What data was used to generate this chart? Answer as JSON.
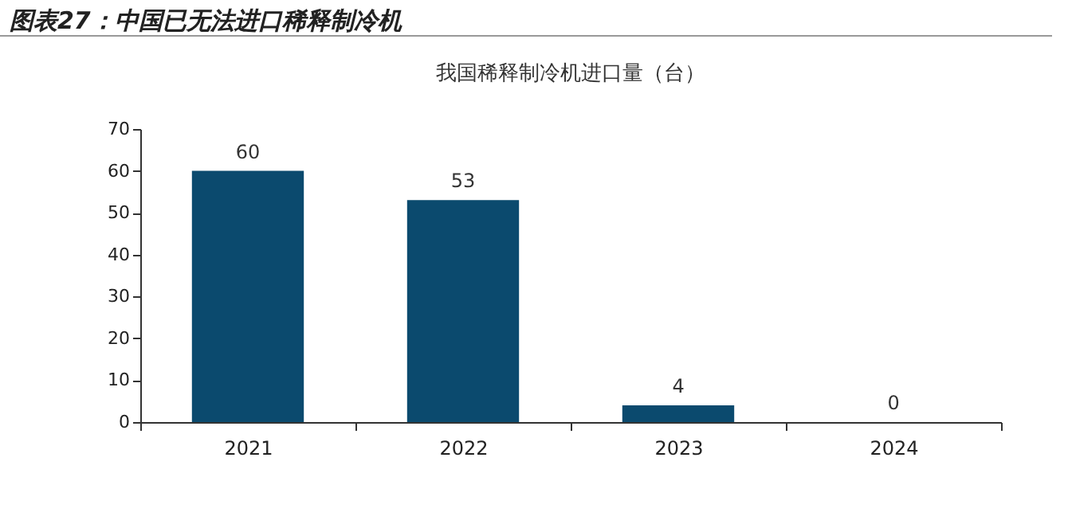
{
  "chart_data": {
    "type": "bar",
    "title": "图表27：中国已无法进口稀释制冷机",
    "subtitle": "我国稀释制冷机进口量（台）",
    "categories": [
      "2021",
      "2022",
      "2023",
      "2024"
    ],
    "values": [
      60,
      53,
      4,
      0
    ],
    "color": "#0b4a6e",
    "ylim": [
      0,
      70
    ],
    "yticks": [
      0,
      10,
      20,
      30,
      40,
      50,
      60,
      70
    ],
    "grid": false,
    "data_labels": true
  }
}
